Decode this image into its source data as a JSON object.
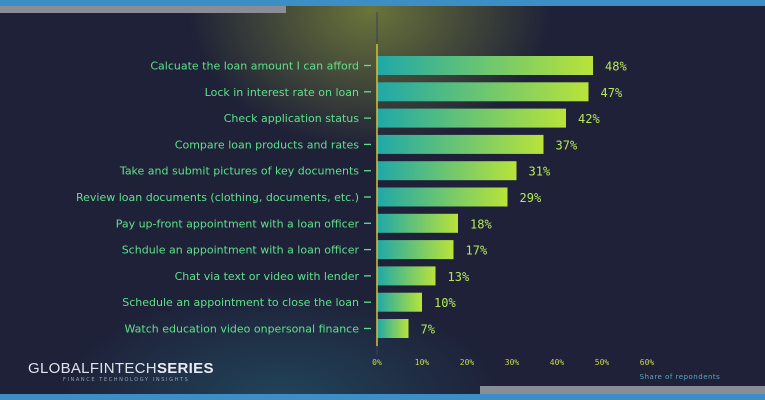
{
  "brand": {
    "logo_part1": "GLOBALFINTECH",
    "logo_part2": "SERIES",
    "tagline": "FINANCE TECHNOLOGY INSIGHTS"
  },
  "colors": {
    "background": "#1e2138",
    "accent_blue": "#3d8ec4",
    "bar_start": "#1fa8a8",
    "bar_end": "#b9e33a",
    "label_green": "#5fe08a",
    "value_green": "#b6e85a",
    "axis_yellow": "#c9d84a"
  },
  "chart_data": {
    "type": "bar",
    "orientation": "horizontal",
    "categories": [
      "Calcuate the loan amount I can afford",
      "Lock in interest rate on loan",
      "Check application status",
      "Compare loan products and rates",
      "Take and submit pictures of key documents",
      "Review loan documents (clothing, documents, etc.)",
      "Pay up-front appointment with a loan officer",
      "Schdule an appointment with a loan officer",
      "Chat via text or video with lender",
      "Schedule an appointment to close the loan",
      "Watch education video onpersonal finance"
    ],
    "values": [
      48,
      47,
      42,
      37,
      31,
      29,
      18,
      17,
      13,
      10,
      7
    ],
    "value_labels": [
      "48%",
      "47%",
      "42%",
      "37%",
      "31%",
      "29%",
      "18%",
      "17%",
      "13%",
      "10%",
      "7%"
    ],
    "xlim": [
      0,
      60
    ],
    "xticks": [
      0,
      10,
      20,
      30,
      40,
      50,
      60
    ],
    "xtick_labels": [
      "0%",
      "10%",
      "20%",
      "30%",
      "40%",
      "50%",
      "60%"
    ],
    "xlabel": "Share of repondents",
    "title": "",
    "grid": false
  }
}
